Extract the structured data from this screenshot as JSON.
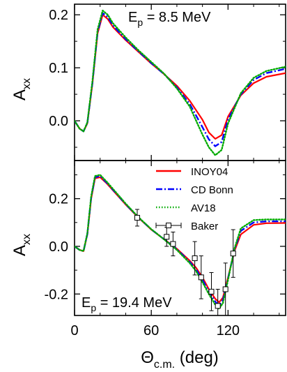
{
  "chart_data": [
    {
      "type": "line",
      "annotation": "E<sub>p</sub> = 8.5 MeV",
      "annotation_parts": {
        "base": "E",
        "sub": "p",
        "rest": " = 8.5 MeV"
      },
      "ylabel": {
        "base": "A",
        "sub": "xx"
      },
      "xlabel": "",
      "xlim": [
        0,
        165
      ],
      "ylim": [
        -0.075,
        0.22
      ],
      "yticks": [
        0.2,
        0.1,
        0.0
      ],
      "ytick_labels": [
        "0.2",
        "0.1",
        "0.0"
      ],
      "xticks": [
        0,
        60,
        120
      ],
      "xtick_labels": [],
      "grid": false,
      "series": [
        {
          "name": "INOY04",
          "color": "#ff0000",
          "style": "solid",
          "x": [
            0,
            4,
            7,
            10,
            14,
            18,
            22,
            26,
            30,
            40,
            50,
            60,
            70,
            80,
            90,
            100,
            105,
            110,
            115,
            120,
            130,
            140,
            150,
            165
          ],
          "y": [
            0.0,
            -0.015,
            -0.02,
            -0.005,
            0.07,
            0.165,
            0.2,
            0.192,
            0.177,
            0.152,
            0.13,
            0.108,
            0.088,
            0.066,
            0.038,
            0.002,
            -0.022,
            -0.034,
            -0.027,
            0.008,
            0.048,
            0.071,
            0.083,
            0.09
          ]
        },
        {
          "name": "CD Bonn",
          "color": "#0000ff",
          "style": "dashdot",
          "x": [
            0,
            4,
            7,
            10,
            14,
            18,
            22,
            26,
            30,
            40,
            50,
            60,
            70,
            80,
            90,
            100,
            105,
            110,
            115,
            120,
            130,
            140,
            150,
            165
          ],
          "y": [
            0.0,
            -0.015,
            -0.02,
            -0.004,
            0.072,
            0.168,
            0.203,
            0.196,
            0.18,
            0.154,
            0.131,
            0.109,
            0.088,
            0.063,
            0.032,
            -0.012,
            -0.035,
            -0.048,
            -0.04,
            0.002,
            0.05,
            0.077,
            0.09,
            0.098
          ]
        },
        {
          "name": "AV18",
          "color": "#00aa00",
          "style": "dotted",
          "x": [
            0,
            4,
            7,
            10,
            14,
            18,
            22,
            26,
            30,
            40,
            50,
            60,
            70,
            80,
            90,
            100,
            105,
            110,
            115,
            120,
            130,
            140,
            150,
            165
          ],
          "y": [
            0.0,
            -0.015,
            -0.02,
            -0.003,
            0.075,
            0.172,
            0.208,
            0.2,
            0.184,
            0.157,
            0.133,
            0.111,
            0.089,
            0.061,
            0.027,
            -0.026,
            -0.05,
            -0.065,
            -0.055,
            -0.005,
            0.052,
            0.081,
            0.094,
            0.102
          ]
        }
      ]
    },
    {
      "type": "line",
      "annotation_parts": {
        "base": "E",
        "sub": "p",
        "rest": " = 19.4 MeV"
      },
      "ylabel": {
        "base": "A",
        "sub": "xx"
      },
      "xlabel": {
        "base": "Θ",
        "sub": "c.m.",
        "rest": " (deg)"
      },
      "xlim": [
        0,
        165
      ],
      "ylim": [
        -0.29,
        0.36
      ],
      "yticks": [
        0.2,
        0.0,
        -0.2
      ],
      "ytick_labels": [
        "0.2",
        "0.0",
        "-0.2"
      ],
      "xticks": [
        0,
        60,
        120
      ],
      "xtick_labels": [
        "0",
        "60",
        "120"
      ],
      "grid": false,
      "legend_position": "top-right",
      "series": [
        {
          "name": "INOY04",
          "color": "#ff0000",
          "style": "solid",
          "x": [
            0,
            4,
            7,
            10,
            13,
            16,
            20,
            25,
            30,
            40,
            50,
            60,
            70,
            80,
            90,
            95,
            100,
            105,
            110,
            113,
            116,
            120,
            125,
            130,
            140,
            150,
            165
          ],
          "y": [
            0.0,
            -0.015,
            -0.02,
            0.05,
            0.2,
            0.285,
            0.29,
            0.265,
            0.235,
            0.175,
            0.12,
            0.07,
            0.03,
            -0.01,
            -0.06,
            -0.09,
            -0.13,
            -0.18,
            -0.22,
            -0.235,
            -0.215,
            -0.13,
            -0.02,
            0.05,
            0.09,
            0.097,
            0.098
          ]
        },
        {
          "name": "CD Bonn",
          "color": "#0000ff",
          "style": "dashdot",
          "x": [
            0,
            4,
            7,
            10,
            13,
            16,
            20,
            25,
            30,
            40,
            50,
            60,
            70,
            80,
            90,
            95,
            100,
            105,
            110,
            113,
            116,
            120,
            125,
            130,
            140,
            150,
            165
          ],
          "y": [
            0.0,
            -0.015,
            -0.02,
            0.052,
            0.205,
            0.29,
            0.295,
            0.268,
            0.238,
            0.177,
            0.121,
            0.071,
            0.03,
            -0.012,
            -0.065,
            -0.097,
            -0.14,
            -0.19,
            -0.232,
            -0.248,
            -0.225,
            -0.135,
            -0.015,
            0.065,
            0.1,
            0.105,
            0.105
          ]
        },
        {
          "name": "AV18",
          "color": "#00aa00",
          "style": "dotted",
          "x": [
            0,
            4,
            7,
            10,
            13,
            16,
            20,
            25,
            30,
            40,
            50,
            60,
            70,
            80,
            90,
            95,
            100,
            105,
            110,
            113,
            116,
            120,
            125,
            130,
            140,
            150,
            165
          ],
          "y": [
            0.0,
            -0.015,
            -0.02,
            0.055,
            0.21,
            0.295,
            0.3,
            0.272,
            0.241,
            0.179,
            0.122,
            0.072,
            0.029,
            -0.015,
            -0.07,
            -0.104,
            -0.15,
            -0.2,
            -0.245,
            -0.262,
            -0.238,
            -0.14,
            -0.01,
            0.075,
            0.11,
            0.113,
            0.113
          ]
        },
        {
          "name": "Baker",
          "color": "#000000",
          "style": "points",
          "points": [
            {
              "x": 49,
              "y": 0.12,
              "err": 0.035
            },
            {
              "x": 72,
              "y": 0.04,
              "err": 0.04
            },
            {
              "x": 77,
              "y": 0.01,
              "err": 0.05
            },
            {
              "x": 94,
              "y": -0.05,
              "err": 0.07
            },
            {
              "x": 99,
              "y": -0.13,
              "err": 0.09
            },
            {
              "x": 107,
              "y": -0.19,
              "err": 0.08
            },
            {
              "x": 112,
              "y": -0.25,
              "err": 0.07
            },
            {
              "x": 118,
              "y": -0.18,
              "err": 0.11
            },
            {
              "x": 124,
              "y": -0.03,
              "err": 0.1
            }
          ]
        }
      ]
    }
  ]
}
